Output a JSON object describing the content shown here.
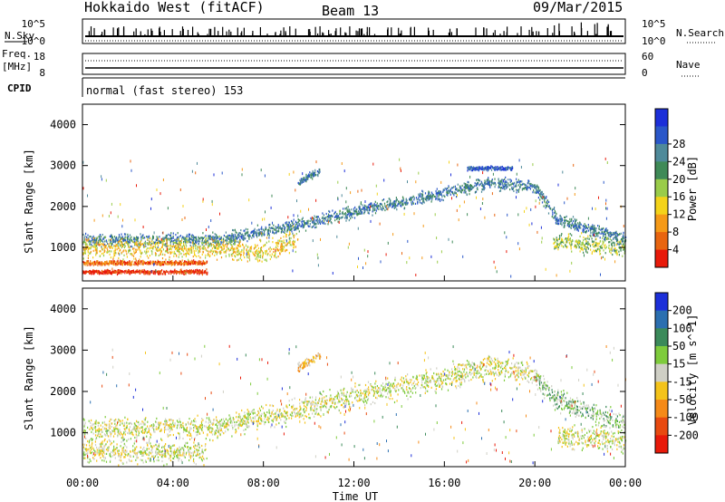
{
  "header": {
    "station": "Hokkaido West (fitACF)",
    "beam": "Beam 13",
    "date": "09/Mar/2015"
  },
  "nsky_panel": {
    "left_label": "N.Sky",
    "right_label": "N.Search",
    "left_ticks": [
      "10^5",
      "10^0"
    ],
    "right_ticks": [
      "10^5",
      "10^0"
    ]
  },
  "freq_panel": {
    "left_label_1": "Freq.",
    "left_label_2": "[MHz]",
    "left_ticks": [
      "18",
      "8"
    ],
    "right_label": "Nave",
    "right_ticks": [
      "60",
      "0"
    ]
  },
  "cpid_panel": {
    "label": "CPID",
    "text": "normal (fast stereo) 153"
  },
  "x_axis": {
    "label": "Time UT",
    "ticks": [
      "00:00",
      "04:00",
      "08:00",
      "12:00",
      "16:00",
      "20:00",
      "00:00"
    ]
  },
  "chart_data": [
    {
      "type": "heatmap",
      "name": "power",
      "ylabel": "Slant Range [km]",
      "y_ticks": [
        1000,
        2000,
        3000,
        4000
      ],
      "ylim": [
        180,
        4500
      ],
      "xlim_hours": [
        0,
        24
      ],
      "colorbar": {
        "label": "Power [dB]",
        "ticks": [
          "4",
          "8",
          "12",
          "16",
          "20",
          "24",
          "28"
        ],
        "colors": [
          "#1c2fd9",
          "#2a57c9",
          "#4f8a9a",
          "#3f8a57",
          "#9acc4a",
          "#f4d31a",
          "#f59a18",
          "#e86510",
          "#e81a0a"
        ]
      },
      "scatter_bands": [
        {
          "t": [
            0.0,
            6.0,
            6.5,
            9.0,
            12.0,
            16.0,
            18.0,
            20.0,
            21.0,
            24.0
          ],
          "r": [
            1200,
            1200,
            1250,
            1500,
            1900,
            2350,
            2600,
            2500,
            1700,
            1200
          ],
          "spread": 120,
          "level": 2
        },
        {
          "t": [
            0.0,
            6.0,
            8.0,
            9.5
          ],
          "r": [
            1000,
            1000,
            900,
            1200
          ],
          "spread": 200,
          "level": 5
        },
        {
          "t": [
            0.0,
            5.5
          ],
          "r": [
            640,
            640
          ],
          "spread": 40,
          "level": 7
        },
        {
          "t": [
            0.0,
            5.5
          ],
          "r": [
            420,
            420
          ],
          "spread": 40,
          "level": 8
        },
        {
          "t": [
            20.8,
            24.0
          ],
          "r": [
            1150,
            1000
          ],
          "spread": 180,
          "level": 4
        },
        {
          "t": [
            9.5,
            10.5
          ],
          "r": [
            2600,
            2900
          ],
          "spread": 70,
          "level": 2
        },
        {
          "t": [
            17.0,
            19.0
          ],
          "r": [
            2950,
            2950
          ],
          "spread": 40,
          "level": 1
        }
      ]
    },
    {
      "type": "heatmap",
      "name": "velocity",
      "ylabel": "Slant Range [km]",
      "y_ticks": [
        1000,
        2000,
        3000,
        4000
      ],
      "ylim": [
        180,
        4500
      ],
      "xlim_hours": [
        0,
        24
      ],
      "colorbar": {
        "label": "Velocity [m s^-1]",
        "ticks": [
          "200",
          "100",
          "50",
          "15",
          "-15",
          "-50",
          "-100",
          "-200"
        ],
        "colors": [
          "#1c2fd9",
          "#2b6fb0",
          "#3b8a5a",
          "#7ecb3c",
          "#cfcfc5",
          "#f4c31a",
          "#f58a18",
          "#e84a10",
          "#e81a0a"
        ]
      },
      "scatter_bands": [
        {
          "t": [
            0.0,
            6.0,
            6.5,
            9.0,
            12.0,
            16.0,
            18.0,
            20.0
          ],
          "r": [
            1100,
            1150,
            1250,
            1500,
            1900,
            2350,
            2600,
            2500
          ],
          "spread": 220,
          "level": 4
        },
        {
          "t": [
            0.0,
            5.5
          ],
          "r": [
            550,
            550
          ],
          "spread": 200,
          "level": 4
        },
        {
          "t": [
            20.0,
            21.0,
            24.0
          ],
          "r": [
            2400,
            1800,
            1200
          ],
          "spread": 200,
          "level": 3
        },
        {
          "t": [
            21.0,
            24.0
          ],
          "r": [
            900,
            850
          ],
          "spread": 220,
          "level": 4
        },
        {
          "t": [
            9.5,
            10.5
          ],
          "r": [
            2600,
            2900
          ],
          "spread": 80,
          "level": 5
        }
      ]
    }
  ]
}
